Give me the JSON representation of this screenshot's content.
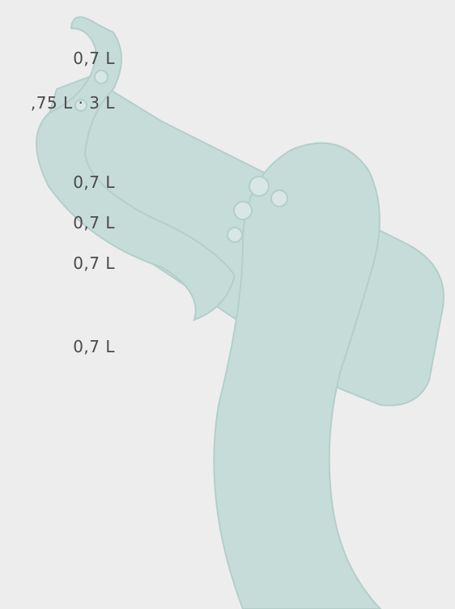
{
  "items": [
    {
      "volume": "0,7 L"
    },
    {
      "volume": ",75 L · 3 L"
    },
    {
      "volume": "0,7 L"
    },
    {
      "volume": "0,7 L"
    },
    {
      "volume": "0,7 L"
    },
    {
      "volume": "0,7 L"
    }
  ]
}
